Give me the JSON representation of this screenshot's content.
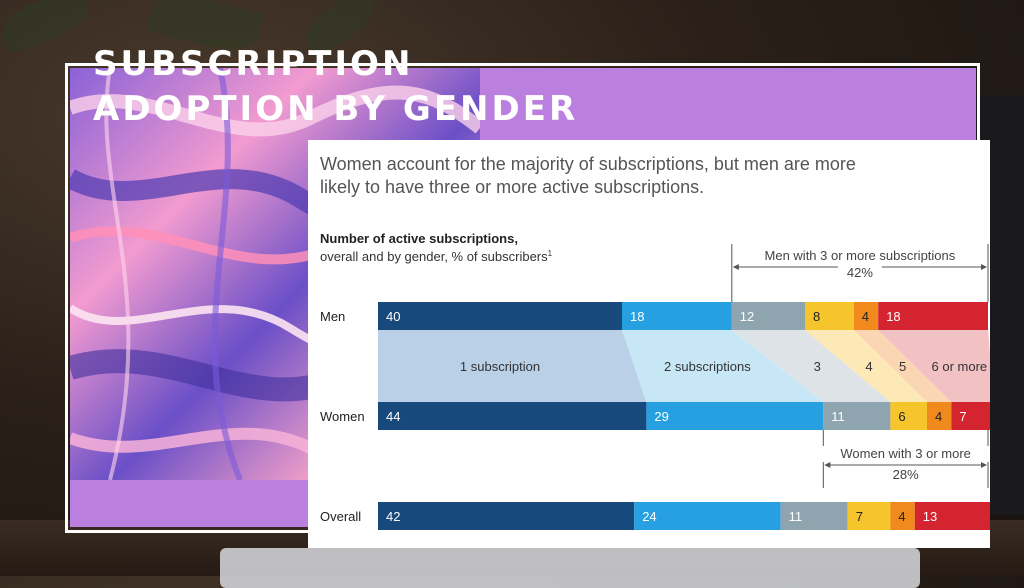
{
  "slide": {
    "title_line1": "SUBSCRIPTION",
    "title_line2": "ADOPTION BY GENDER"
  },
  "colors": {
    "accent_purple": "#bb7fe0",
    "seg_1": "#17497c",
    "seg_2": "#27a0e1",
    "seg_3": "#8ea5b0",
    "seg_4": "#f6c42b",
    "seg_5": "#f08a1d",
    "seg_6": "#d3242f"
  },
  "chart_data": {
    "type": "bar",
    "title": "Women account for the majority of subscriptions, but men are more likely to have three or more active subscriptions.",
    "title_lines": [
      "Women account for the majority of subscriptions, but men are more",
      "likely to have three or more active subscriptions."
    ],
    "subtitle_line1": "Number of active subscriptions,",
    "subtitle_line2": "overall and by gender, % of subscribers",
    "subtitle_footnote": "1",
    "categories": [
      "Men",
      "Women",
      "Overall"
    ],
    "segment_labels": [
      "1 subscription",
      "2 subscriptions",
      "3",
      "4",
      "5",
      "6 or more"
    ],
    "rows": [
      {
        "label": "Men",
        "values": [
          40,
          18,
          12,
          8,
          4,
          18
        ]
      },
      {
        "label": "Women",
        "values": [
          44,
          29,
          11,
          6,
          4,
          7
        ]
      },
      {
        "label": "Overall",
        "values": [
          42,
          24,
          11,
          7,
          4,
          13
        ]
      }
    ],
    "annotations": [
      {
        "row": "Men",
        "position": "above",
        "from_segment": 2,
        "text": "Men with 3 or more subscriptions",
        "value": "42%"
      },
      {
        "row": "Women",
        "position": "below",
        "from_segment": 2,
        "text": "Women with 3 or more",
        "value": "28%"
      }
    ]
  }
}
